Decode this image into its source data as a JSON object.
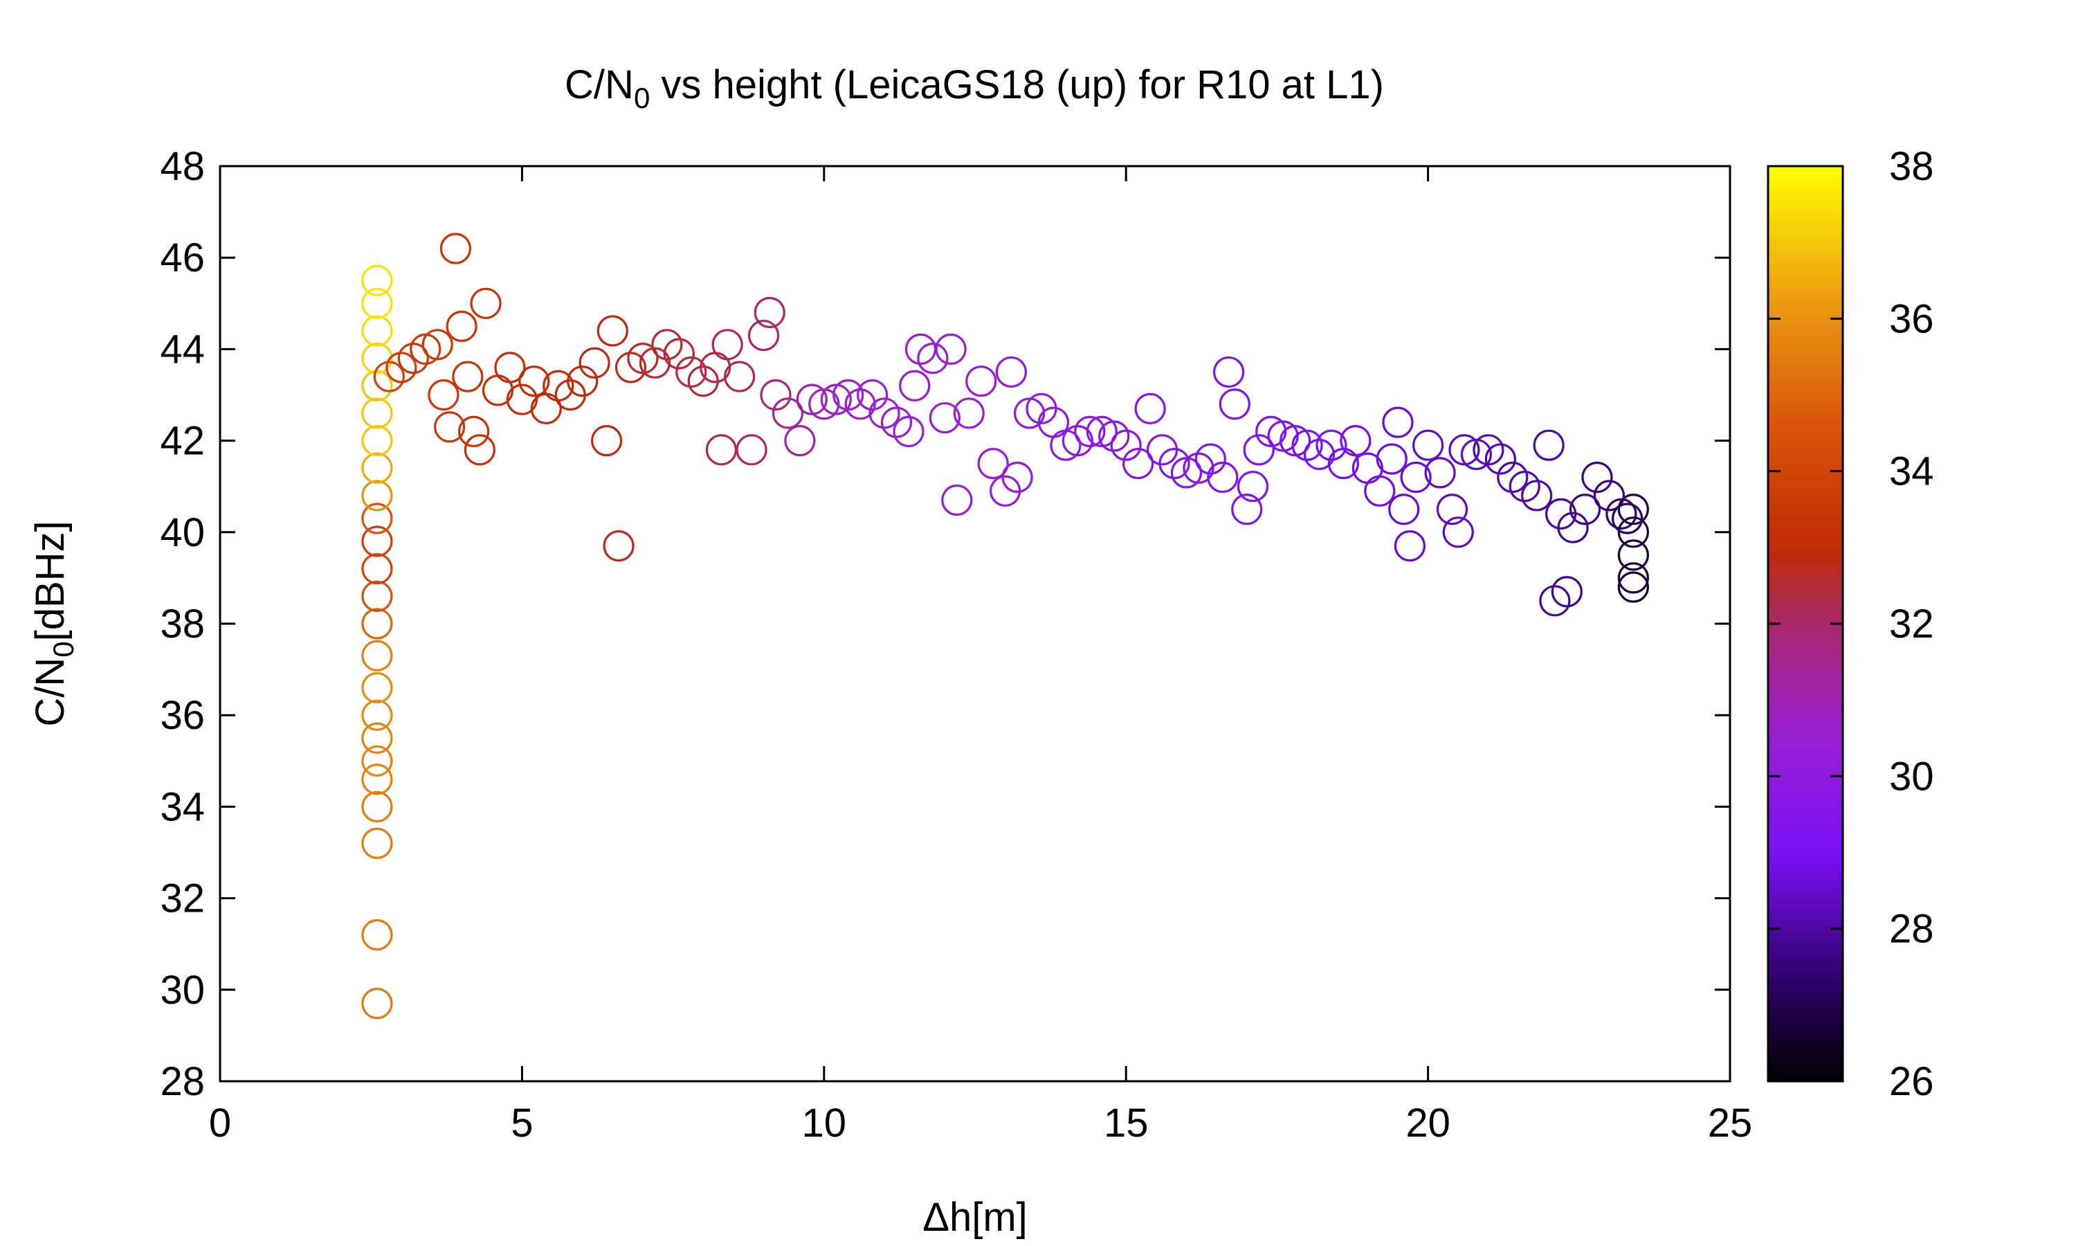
{
  "chart_data": {
    "type": "scatter",
    "title_parts": {
      "pre": "C/N",
      "sub": "0",
      "post": " vs height (LeicaGS18 (up) for R10 at L1)"
    },
    "ylabel_parts": {
      "pre": "C/N",
      "sub": "0",
      "post": "[dBHz]"
    },
    "xlabel": "Δh[m]",
    "xlim": [
      0,
      25
    ],
    "ylim": [
      28,
      48
    ],
    "xticks": [
      0,
      5,
      10,
      15,
      20,
      25
    ],
    "yticks": [
      28,
      30,
      32,
      34,
      36,
      38,
      40,
      42,
      44,
      46,
      48
    ],
    "color_scale": {
      "range": [
        26,
        38
      ],
      "ticks": [
        26,
        28,
        30,
        32,
        34,
        36,
        38
      ],
      "palette": "black-purple-red-orange-yellow"
    },
    "grid": false,
    "legend": "none",
    "marker": "open circle",
    "points_xyc": [
      [
        2.6,
        29.7,
        35.5
      ],
      [
        2.6,
        31.2,
        35.5
      ],
      [
        2.6,
        33.2,
        35.5
      ],
      [
        2.6,
        34.0,
        35.5
      ],
      [
        2.6,
        34.6,
        35.6
      ],
      [
        2.6,
        35.0,
        35.7
      ],
      [
        2.6,
        35.5,
        35.6
      ],
      [
        2.6,
        36.0,
        35.8
      ],
      [
        2.6,
        36.6,
        35.8
      ],
      [
        2.6,
        37.3,
        35.6
      ],
      [
        2.6,
        38.0,
        35.0
      ],
      [
        2.6,
        38.6,
        34.5
      ],
      [
        2.6,
        39.2,
        34.0
      ],
      [
        2.6,
        39.8,
        33.8
      ],
      [
        2.6,
        40.3,
        34.5
      ],
      [
        2.6,
        40.8,
        36.0
      ],
      [
        2.6,
        41.4,
        36.5
      ],
      [
        2.6,
        42.0,
        37.0
      ],
      [
        2.6,
        42.6,
        37.0
      ],
      [
        2.6,
        43.2,
        37.0
      ],
      [
        2.6,
        43.8,
        37.2
      ],
      [
        2.6,
        44.4,
        37.4
      ],
      [
        2.6,
        45.0,
        37.5
      ],
      [
        2.6,
        45.5,
        37.5
      ],
      [
        2.8,
        43.4,
        34.0
      ],
      [
        3.0,
        43.6,
        33.8
      ],
      [
        3.2,
        43.8,
        33.7
      ],
      [
        3.4,
        44.0,
        33.6
      ],
      [
        3.6,
        44.1,
        33.6
      ],
      [
        3.7,
        43.0,
        33.5
      ],
      [
        3.8,
        42.3,
        33.5
      ],
      [
        3.9,
        46.2,
        33.4
      ],
      [
        4.0,
        44.5,
        33.4
      ],
      [
        4.1,
        43.4,
        33.3
      ],
      [
        4.2,
        42.2,
        33.3
      ],
      [
        4.3,
        41.8,
        33.2
      ],
      [
        4.4,
        45.0,
        33.3
      ],
      [
        4.6,
        43.1,
        33.2
      ],
      [
        4.8,
        43.6,
        33.1
      ],
      [
        5.0,
        42.9,
        33.1
      ],
      [
        5.2,
        43.3,
        33.0
      ],
      [
        5.4,
        42.7,
        33.0
      ],
      [
        5.6,
        43.2,
        33.0
      ],
      [
        5.8,
        43.0,
        32.9
      ],
      [
        6.0,
        43.3,
        32.9
      ],
      [
        6.2,
        43.7,
        32.8
      ],
      [
        6.4,
        42.0,
        32.8
      ],
      [
        6.5,
        44.4,
        32.8
      ],
      [
        6.6,
        39.7,
        32.7
      ],
      [
        6.8,
        43.6,
        32.7
      ],
      [
        7.0,
        43.8,
        32.6
      ],
      [
        7.2,
        43.7,
        32.6
      ],
      [
        7.4,
        44.1,
        32.5
      ],
      [
        7.6,
        43.9,
        32.5
      ],
      [
        7.8,
        43.5,
        32.4
      ],
      [
        8.0,
        43.3,
        32.4
      ],
      [
        8.2,
        43.6,
        32.3
      ],
      [
        8.3,
        41.8,
        32.3
      ],
      [
        8.4,
        44.1,
        32.2
      ],
      [
        8.6,
        43.4,
        32.2
      ],
      [
        8.8,
        41.8,
        32.1
      ],
      [
        9.0,
        44.3,
        32.0
      ],
      [
        9.1,
        44.8,
        32.0
      ],
      [
        9.2,
        43.0,
        31.8
      ],
      [
        9.4,
        42.6,
        31.5
      ],
      [
        9.6,
        42.0,
        31.3
      ],
      [
        9.8,
        42.9,
        31.0
      ],
      [
        10.0,
        42.8,
        30.9
      ],
      [
        10.2,
        42.9,
        30.8
      ],
      [
        10.4,
        43.0,
        30.7
      ],
      [
        10.6,
        42.8,
        30.7
      ],
      [
        10.8,
        43.0,
        30.6
      ],
      [
        11.0,
        42.6,
        30.6
      ],
      [
        11.2,
        42.4,
        30.6
      ],
      [
        11.4,
        42.2,
        30.5
      ],
      [
        11.5,
        43.2,
        30.5
      ],
      [
        11.6,
        44.0,
        30.5
      ],
      [
        11.8,
        43.8,
        30.5
      ],
      [
        12.0,
        42.5,
        30.4
      ],
      [
        12.1,
        44.0,
        30.4
      ],
      [
        12.2,
        40.7,
        30.4
      ],
      [
        12.4,
        42.6,
        30.3
      ],
      [
        12.6,
        43.3,
        30.3
      ],
      [
        12.8,
        41.5,
        30.3
      ],
      [
        13.0,
        40.9,
        30.2
      ],
      [
        13.1,
        43.5,
        30.2
      ],
      [
        13.2,
        41.2,
        30.2
      ],
      [
        13.4,
        42.6,
        30.1
      ],
      [
        13.6,
        42.7,
        30.1
      ],
      [
        13.8,
        42.4,
        30.0
      ],
      [
        14.0,
        41.9,
        30.0
      ],
      [
        14.2,
        42.0,
        29.9
      ],
      [
        14.4,
        42.2,
        29.9
      ],
      [
        14.6,
        42.2,
        29.8
      ],
      [
        14.8,
        42.1,
        29.8
      ],
      [
        15.0,
        41.9,
        29.7
      ],
      [
        15.2,
        41.5,
        29.7
      ],
      [
        15.4,
        42.7,
        29.6
      ],
      [
        15.6,
        41.8,
        29.6
      ],
      [
        15.8,
        41.5,
        29.5
      ],
      [
        16.0,
        41.3,
        29.5
      ],
      [
        16.2,
        41.4,
        29.4
      ],
      [
        16.4,
        41.6,
        29.4
      ],
      [
        16.6,
        41.2,
        29.3
      ],
      [
        16.7,
        43.5,
        29.3
      ],
      [
        16.8,
        42.8,
        29.3
      ],
      [
        17.0,
        40.5,
        29.3
      ],
      [
        17.1,
        41.0,
        29.3
      ],
      [
        17.2,
        41.8,
        29.2
      ],
      [
        17.4,
        42.2,
        29.2
      ],
      [
        17.6,
        42.1,
        29.2
      ],
      [
        17.8,
        42.0,
        29.1
      ],
      [
        18.0,
        41.9,
        29.1
      ],
      [
        18.2,
        41.7,
        29.0
      ],
      [
        18.4,
        41.9,
        29.0
      ],
      [
        18.6,
        41.5,
        28.9
      ],
      [
        18.8,
        42.0,
        28.9
      ],
      [
        19.0,
        41.4,
        28.8
      ],
      [
        19.2,
        40.9,
        28.8
      ],
      [
        19.4,
        41.6,
        28.7
      ],
      [
        19.5,
        42.4,
        28.7
      ],
      [
        19.6,
        40.5,
        28.6
      ],
      [
        19.7,
        39.7,
        28.6
      ],
      [
        19.8,
        41.2,
        28.6
      ],
      [
        20.0,
        41.9,
        28.5
      ],
      [
        20.2,
        41.3,
        28.5
      ],
      [
        20.4,
        40.5,
        28.4
      ],
      [
        20.5,
        40.0,
        28.4
      ],
      [
        20.6,
        41.8,
        28.3
      ],
      [
        20.8,
        41.7,
        28.3
      ],
      [
        21.0,
        41.8,
        28.2
      ],
      [
        21.2,
        41.6,
        28.2
      ],
      [
        21.4,
        41.2,
        28.1
      ],
      [
        21.6,
        41.0,
        28.1
      ],
      [
        21.8,
        40.8,
        28.0
      ],
      [
        22.0,
        41.9,
        28.0
      ],
      [
        22.1,
        38.5,
        27.9
      ],
      [
        22.2,
        40.4,
        27.9
      ],
      [
        22.3,
        38.7,
        27.8
      ],
      [
        22.4,
        40.1,
        27.8
      ],
      [
        22.6,
        40.5,
        27.7
      ],
      [
        22.8,
        41.2,
        27.6
      ],
      [
        23.0,
        40.8,
        27.5
      ],
      [
        23.2,
        40.4,
        27.4
      ],
      [
        23.4,
        40.5,
        27.0
      ],
      [
        23.4,
        40.0,
        26.9
      ],
      [
        23.4,
        39.5,
        26.8
      ],
      [
        23.4,
        39.0,
        26.8
      ],
      [
        23.4,
        38.8,
        26.7
      ],
      [
        23.3,
        40.3,
        27.2
      ]
    ]
  }
}
